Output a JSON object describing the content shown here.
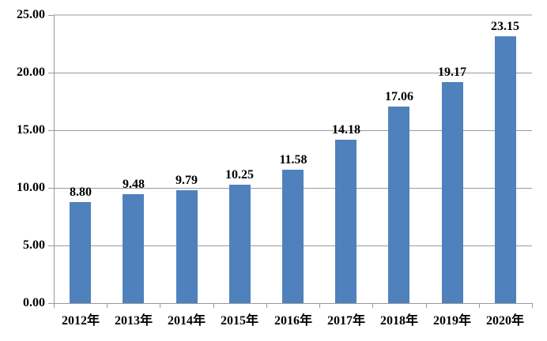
{
  "chart_data": {
    "type": "bar",
    "title": "",
    "xlabel": "",
    "ylabel": "",
    "categories": [
      "2012年",
      "2013年",
      "2014年",
      "2015年",
      "2016年",
      "2017年",
      "2018年",
      "2019年",
      "2020年"
    ],
    "values": [
      8.8,
      9.48,
      9.79,
      10.25,
      11.58,
      14.18,
      17.06,
      19.17,
      23.15
    ],
    "value_labels": [
      "8.80",
      "9.48",
      "9.79",
      "10.25",
      "11.58",
      "14.18",
      "17.06",
      "19.17",
      "23.15"
    ],
    "ylim": [
      0,
      25
    ],
    "yticks": [
      0,
      5,
      10,
      15,
      20,
      25
    ],
    "ytick_labels": [
      "0.00",
      "5.00",
      "10.00",
      "15.00",
      "20.00",
      "25.00"
    ],
    "grid": true,
    "legend": false,
    "legend_position": "none",
    "bar_color": "#4F81BD",
    "axis_color": "#999999",
    "gridline_color": "#9b9b9b",
    "top_gridline_color": "#cccccc",
    "label_color": "#000000",
    "background": "#ffffff"
  }
}
